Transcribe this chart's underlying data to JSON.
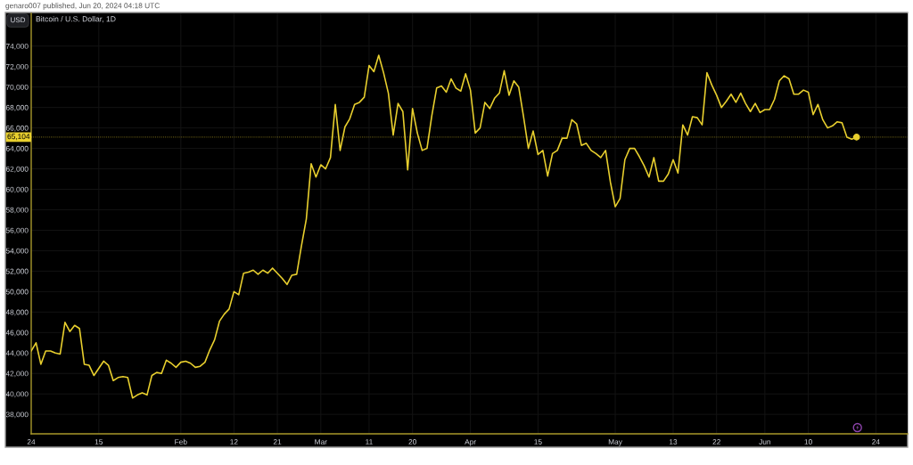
{
  "chart_data": {
    "type": "line",
    "title": "Bitcoin / U.S. Dollar, 1D",
    "ylabel": "USD",
    "annotations": [
      "genaro007 published, Jun 20, 2024 04:18 UTC"
    ],
    "x": [
      "2024-01-01",
      "2024-01-02",
      "2024-01-03",
      "2024-01-04",
      "2024-01-05",
      "2024-01-06",
      "2024-01-07",
      "2024-01-08",
      "2024-01-09",
      "2024-01-10",
      "2024-01-11",
      "2024-01-12",
      "2024-01-13",
      "2024-01-14",
      "2024-01-15",
      "2024-01-16",
      "2024-01-17",
      "2024-01-18",
      "2024-01-19",
      "2024-01-20",
      "2024-01-21",
      "2024-01-22",
      "2024-01-23",
      "2024-01-24",
      "2024-01-25",
      "2024-01-26",
      "2024-01-27",
      "2024-01-28",
      "2024-01-29",
      "2024-01-30",
      "2024-01-31",
      "2024-02-01",
      "2024-02-02",
      "2024-02-03",
      "2024-02-04",
      "2024-02-05",
      "2024-02-06",
      "2024-02-07",
      "2024-02-08",
      "2024-02-09",
      "2024-02-10",
      "2024-02-11",
      "2024-02-12",
      "2024-02-13",
      "2024-02-14",
      "2024-02-15",
      "2024-02-16",
      "2024-02-17",
      "2024-02-18",
      "2024-02-19",
      "2024-02-20",
      "2024-02-21",
      "2024-02-22",
      "2024-02-23",
      "2024-02-24",
      "2024-02-25",
      "2024-02-26",
      "2024-02-27",
      "2024-02-28",
      "2024-02-29",
      "2024-03-01",
      "2024-03-02",
      "2024-03-03",
      "2024-03-04",
      "2024-03-05",
      "2024-03-06",
      "2024-03-07",
      "2024-03-08",
      "2024-03-09",
      "2024-03-10",
      "2024-03-11",
      "2024-03-12",
      "2024-03-13",
      "2024-03-14",
      "2024-03-15",
      "2024-03-16",
      "2024-03-17",
      "2024-03-18",
      "2024-03-19",
      "2024-03-20",
      "2024-03-21",
      "2024-03-22",
      "2024-03-23",
      "2024-03-24",
      "2024-03-25",
      "2024-03-26",
      "2024-03-27",
      "2024-03-28",
      "2024-03-29",
      "2024-03-30",
      "2024-03-31",
      "2024-04-01",
      "2024-04-02",
      "2024-04-03",
      "2024-04-04",
      "2024-04-05",
      "2024-04-06",
      "2024-04-07",
      "2024-04-08",
      "2024-04-09",
      "2024-04-10",
      "2024-04-11",
      "2024-04-12",
      "2024-04-13",
      "2024-04-14",
      "2024-04-15",
      "2024-04-16",
      "2024-04-17",
      "2024-04-18",
      "2024-04-19",
      "2024-04-20",
      "2024-04-21",
      "2024-04-22",
      "2024-04-23",
      "2024-04-24",
      "2024-04-25",
      "2024-04-26",
      "2024-04-27",
      "2024-04-28",
      "2024-04-29",
      "2024-04-30",
      "2024-05-01",
      "2024-05-02",
      "2024-05-03",
      "2024-05-04",
      "2024-05-05",
      "2024-05-06",
      "2024-05-07",
      "2024-05-08",
      "2024-05-09",
      "2024-05-10",
      "2024-05-11",
      "2024-05-12",
      "2024-05-13",
      "2024-05-14",
      "2024-05-15",
      "2024-05-16",
      "2024-05-17",
      "2024-05-18",
      "2024-05-19",
      "2024-05-20",
      "2024-05-21",
      "2024-05-22",
      "2024-05-23",
      "2024-05-24",
      "2024-05-25",
      "2024-05-26",
      "2024-05-27",
      "2024-05-28",
      "2024-05-29",
      "2024-05-30",
      "2024-05-31",
      "2024-06-01",
      "2024-06-02",
      "2024-06-03",
      "2024-06-04",
      "2024-06-05",
      "2024-06-06",
      "2024-06-07",
      "2024-06-08",
      "2024-06-09",
      "2024-06-10",
      "2024-06-11",
      "2024-06-12",
      "2024-06-13",
      "2024-06-14",
      "2024-06-15",
      "2024-06-16",
      "2024-06-17",
      "2024-06-18",
      "2024-06-19",
      "2024-06-20"
    ],
    "series": [
      {
        "color": "#e8cf2e",
        "line_style": "solid",
        "values": [
          44200,
          45000,
          42900,
          44200,
          44200,
          44000,
          43900,
          47000,
          46100,
          46700,
          46400,
          42900,
          42800,
          41800,
          42500,
          43200,
          42800,
          41300,
          41600,
          41700,
          41600,
          39600,
          39900,
          40100,
          39900,
          41800,
          42100,
          42000,
          43300,
          43000,
          42600,
          43100,
          43200,
          43000,
          42600,
          42700,
          43100,
          44300,
          45300,
          47100,
          47800,
          48300,
          50000,
          49700,
          51800,
          51900,
          52100,
          51700,
          52100,
          51800,
          52300,
          51800,
          51300,
          50700,
          51600,
          51700,
          54500,
          57100,
          62500,
          61200,
          62400,
          62000,
          63100,
          68300,
          63800,
          66100,
          66900,
          68300,
          68500,
          69000,
          72100,
          71500,
          73100,
          71400,
          69400,
          65300,
          68400,
          67600,
          61900,
          67900,
          65500,
          63800,
          64000,
          67200,
          69900,
          70100,
          69500,
          70800,
          69900,
          69600,
          71300,
          69700,
          65500,
          66000,
          68500,
          67900,
          68900,
          69400,
          71600,
          69200,
          70600,
          70000,
          67100,
          64000,
          65700,
          63400,
          63800,
          61300,
          63500,
          63800,
          65000,
          65000,
          66800,
          66400,
          64300,
          64500,
          63800,
          63500,
          63100,
          63800,
          60700,
          58300,
          59100,
          62900,
          64000,
          64000,
          63200,
          62300,
          61200,
          63100,
          60800,
          60800,
          61500,
          62900,
          61600,
          66300,
          65300,
          67100,
          67000,
          66300,
          71400,
          70200,
          69200,
          68000,
          68600,
          69300,
          68500,
          69400,
          68400,
          67600,
          68400,
          67500,
          67800,
          67800,
          68800,
          70600,
          71100,
          70800,
          69300,
          69300,
          69700,
          69500,
          67300,
          68300,
          66800,
          66000,
          66200,
          66600,
          66500,
          65100,
          64900,
          65104
        ]
      },
      {
        "type": "scatter",
        "marker": "circle",
        "color": "#e8cf2e",
        "x": [
          "2024-06-20"
        ],
        "values": [
          65104
        ]
      }
    ],
    "xlim": [
      "2024-01-01",
      "2024-06-30T14:00"
    ],
    "ylim": [
      36100,
      77200
    ],
    "xticks": [
      {
        "value": "2024-01-01",
        "label": "24"
      },
      {
        "value": "2024-01-15",
        "label": "15"
      },
      {
        "value": "2024-02-01",
        "label": "Feb"
      },
      {
        "value": "2024-02-12",
        "label": "12"
      },
      {
        "value": "2024-02-21",
        "label": "21"
      },
      {
        "value": "2024-03-01",
        "label": "Mar"
      },
      {
        "value": "2024-03-11",
        "label": "11"
      },
      {
        "value": "2024-03-20",
        "label": "20"
      },
      {
        "value": "2024-04-01",
        "label": "Apr"
      },
      {
        "value": "2024-04-15",
        "label": "15"
      },
      {
        "value": "2024-05-01",
        "label": "May"
      },
      {
        "value": "2024-05-13",
        "label": "13"
      },
      {
        "value": "2024-05-22",
        "label": "22"
      },
      {
        "value": "2024-06-01",
        "label": "Jun"
      },
      {
        "value": "2024-06-10",
        "label": "10"
      },
      {
        "value": "2024-06-24",
        "label": "24"
      }
    ],
    "yticks": [
      {
        "value": 38000,
        "label": "38,000"
      },
      {
        "value": 40000,
        "label": "40,000"
      },
      {
        "value": 42000,
        "label": "42,000"
      },
      {
        "value": 44000,
        "label": "44,000"
      },
      {
        "value": 46000,
        "label": "46,000"
      },
      {
        "value": 48000,
        "label": "48,000"
      },
      {
        "value": 50000,
        "label": "50,000"
      },
      {
        "value": 52000,
        "label": "52,000"
      },
      {
        "value": 54000,
        "label": "54,000"
      },
      {
        "value": 56000,
        "label": "56,000"
      },
      {
        "value": 58000,
        "label": "58,000"
      },
      {
        "value": 60000,
        "label": "60,000"
      },
      {
        "value": 62000,
        "label": "62,000"
      },
      {
        "value": 64000,
        "label": "64,000"
      },
      {
        "value": 66000,
        "label": "66,000"
      },
      {
        "value": 68000,
        "label": "68,000"
      },
      {
        "value": 70000,
        "label": "70,000"
      },
      {
        "value": 72000,
        "label": "72,000"
      },
      {
        "value": 74000,
        "label": "74,000"
      }
    ],
    "ref_lines": [
      {
        "axis": "y",
        "value": 65104,
        "label": "65,104",
        "color": "#e8cf2e",
        "line_style": "dotted"
      }
    ],
    "grid": true
  }
}
